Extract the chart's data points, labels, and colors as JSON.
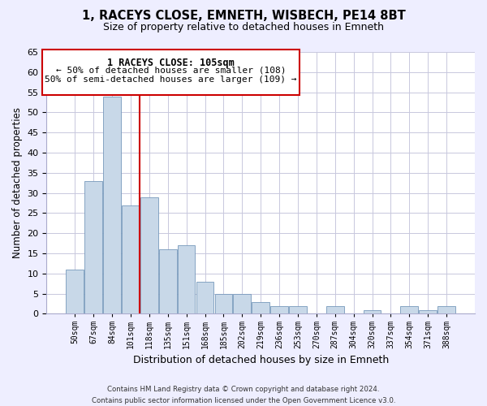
{
  "title": "1, RACEYS CLOSE, EMNETH, WISBECH, PE14 8BT",
  "subtitle": "Size of property relative to detached houses in Emneth",
  "xlabel": "Distribution of detached houses by size in Emneth",
  "ylabel": "Number of detached properties",
  "bar_labels": [
    "50sqm",
    "67sqm",
    "84sqm",
    "101sqm",
    "118sqm",
    "135sqm",
    "151sqm",
    "168sqm",
    "185sqm",
    "202sqm",
    "219sqm",
    "236sqm",
    "253sqm",
    "270sqm",
    "287sqm",
    "304sqm",
    "320sqm",
    "337sqm",
    "354sqm",
    "371sqm",
    "388sqm"
  ],
  "bar_values": [
    11,
    33,
    54,
    27,
    29,
    16,
    17,
    8,
    5,
    5,
    3,
    2,
    2,
    0,
    2,
    0,
    1,
    0,
    2,
    1,
    2
  ],
  "bar_color": "#c8d8e8",
  "bar_edge_color": "#7799bb",
  "vline_x": 3.5,
  "vline_color": "#cc0000",
  "ylim": [
    0,
    65
  ],
  "yticks": [
    0,
    5,
    10,
    15,
    20,
    25,
    30,
    35,
    40,
    45,
    50,
    55,
    60,
    65
  ],
  "annotation_title": "1 RACEYS CLOSE: 105sqm",
  "annotation_line1": "← 50% of detached houses are smaller (108)",
  "annotation_line2": "50% of semi-detached houses are larger (109) →",
  "footer_line1": "Contains HM Land Registry data © Crown copyright and database right 2024.",
  "footer_line2": "Contains public sector information licensed under the Open Government Licence v3.0.",
  "background_color": "#eeeeff",
  "plot_bg_color": "#ffffff",
  "grid_color": "#c8c8dd"
}
